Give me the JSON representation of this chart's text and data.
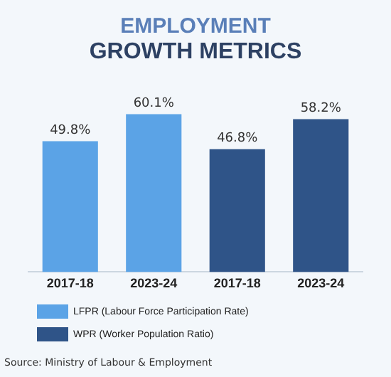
{
  "chart_data": {
    "type": "bar",
    "title": "EMPLOYMENT",
    "subtitle": "GROWTH METRICS",
    "categories": [
      "2017-18",
      "2023-24",
      "2017-18",
      "2023-24"
    ],
    "series": [
      {
        "name": "LFPR (Labour Force Participation Rate)",
        "color": "#5ba3e6",
        "values": [
          49.8,
          60.1,
          null,
          null
        ],
        "value_labels": [
          "49.8%",
          "60.1%",
          null,
          null
        ]
      },
      {
        "name": "WPR (Worker Population Ratio)",
        "color": "#2f5488",
        "values": [
          null,
          null,
          46.8,
          58.2
        ],
        "value_labels": [
          null,
          null,
          "46.8%",
          "58.2%"
        ]
      }
    ],
    "legend": "bottom left",
    "grid": false,
    "annotations": [
      "Source: Ministry of Labour & Employment"
    ]
  }
}
